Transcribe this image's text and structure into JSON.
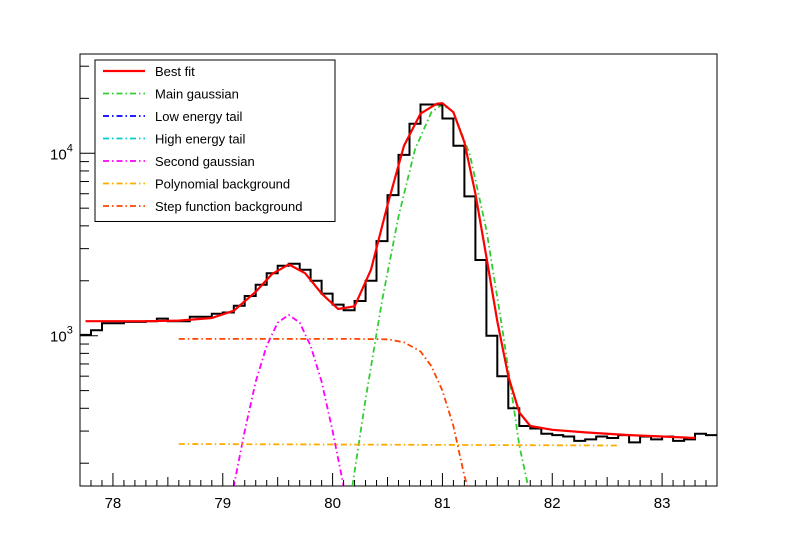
{
  "chart_data": {
    "type": "line",
    "title": "",
    "xlabel": "",
    "ylabel": "",
    "xlim": [
      77.7,
      83.5
    ],
    "ylim": [
      150,
      35000
    ],
    "yscale": "log",
    "grid": false,
    "legend_position": "top-left",
    "x_ticks": [
      "78",
      "79",
      "80",
      "81",
      "82",
      "83"
    ],
    "y_ticks": [
      {
        "base": "10",
        "exp": "3"
      },
      {
        "base": "10",
        "exp": "4"
      }
    ],
    "histogram": {
      "name": "",
      "color": "#000000",
      "x": [
        77.7,
        77.8,
        77.9,
        78.0,
        78.1,
        78.2,
        78.3,
        78.4,
        78.5,
        78.6,
        78.7,
        78.8,
        78.9,
        79.0,
        79.1,
        79.2,
        79.3,
        79.4,
        79.5,
        79.6,
        79.7,
        79.8,
        79.9,
        80.0,
        80.1,
        80.2,
        80.3,
        80.4,
        80.5,
        80.6,
        80.7,
        80.8,
        80.9,
        81.0,
        81.1,
        81.2,
        81.3,
        81.4,
        81.5,
        81.6,
        81.7,
        81.8,
        81.9,
        82.0,
        82.1,
        82.2,
        82.3,
        82.4,
        82.5,
        82.6,
        82.7,
        82.8,
        82.9,
        83.0,
        83.1,
        83.2,
        83.3,
        83.4
      ],
      "y": [
        1010,
        1070,
        1170,
        1170,
        1190,
        1190,
        1200,
        1240,
        1200,
        1200,
        1270,
        1270,
        1320,
        1340,
        1460,
        1650,
        1900,
        2200,
        2420,
        2480,
        2300,
        2000,
        1700,
        1480,
        1380,
        1550,
        2000,
        3300,
        5900,
        9800,
        14500,
        18500,
        18500,
        15500,
        11000,
        5800,
        2600,
        1000,
        600,
        400,
        320,
        310,
        290,
        285,
        280,
        265,
        270,
        280,
        275,
        285,
        260,
        280,
        270,
        280,
        265,
        270,
        290,
        285
      ]
    },
    "series": [
      {
        "name": "Best fit",
        "color": "#ff0000",
        "style": "solid",
        "x": [
          77.75,
          78.0,
          78.3,
          78.6,
          78.9,
          79.1,
          79.3,
          79.45,
          79.6,
          79.75,
          79.9,
          80.05,
          80.2,
          80.35,
          80.5,
          80.65,
          80.8,
          80.95,
          81.0,
          81.1,
          81.2,
          81.3,
          81.4,
          81.5,
          81.6,
          81.7,
          81.8,
          82.0,
          82.3,
          82.7,
          83.0,
          83.3
        ],
        "y": [
          1200,
          1200,
          1200,
          1210,
          1250,
          1370,
          1740,
          2180,
          2460,
          2200,
          1700,
          1400,
          1450,
          2300,
          5200,
          11000,
          16500,
          18700,
          18800,
          16800,
          11500,
          6000,
          2700,
          1200,
          600,
          380,
          320,
          305,
          295,
          285,
          280,
          275
        ]
      },
      {
        "name": "Main gaussian",
        "color": "#33cc33",
        "style": "dash-dot",
        "x": [
          80.18,
          80.3,
          80.45,
          80.6,
          80.75,
          80.9,
          81.0,
          81.1,
          81.25,
          81.4,
          81.55,
          81.7,
          81.78
        ],
        "y": [
          150,
          450,
          1550,
          4500,
          10500,
          16800,
          18500,
          16800,
          9800,
          3800,
          1050,
          250,
          150
        ]
      },
      {
        "name": "Low energy tail",
        "color": "#0000ff",
        "style": "dash-dot",
        "x": [],
        "y": []
      },
      {
        "name": "High energy tail",
        "color": "#00cccc",
        "style": "dash-dot",
        "x": [],
        "y": []
      },
      {
        "name": "Second gaussian",
        "color": "#ff00ff",
        "style": "dash-dot",
        "x": [
          79.0,
          79.1,
          79.2,
          79.3,
          79.4,
          79.5,
          79.6,
          79.7,
          79.8,
          79.9,
          80.0,
          80.1,
          80.2
        ],
        "y": [
          90,
          150,
          300,
          560,
          880,
          1180,
          1300,
          1180,
          880,
          560,
          300,
          150,
          90
        ]
      },
      {
        "name": "Polynomial background",
        "color": "#ffaa00",
        "style": "dash-dot",
        "x": [
          78.6,
          82.6
        ],
        "y": [
          255,
          250
        ]
      },
      {
        "name": "Step function background",
        "color": "#ff4400",
        "style": "dash-dot",
        "x": [
          78.6,
          79.5,
          80.2,
          80.5,
          80.65,
          80.8,
          80.9,
          81.0,
          81.1,
          81.2,
          81.3
        ],
        "y": [
          960,
          960,
          960,
          955,
          920,
          820,
          680,
          500,
          320,
          170,
          110
        ]
      }
    ]
  }
}
